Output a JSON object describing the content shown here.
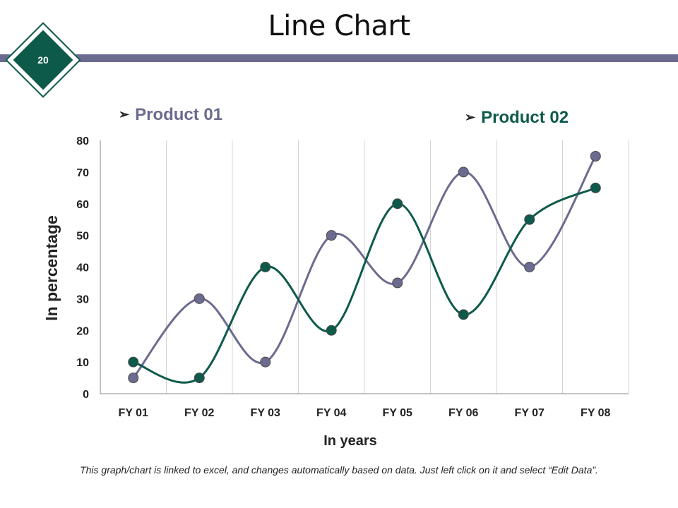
{
  "page": {
    "title": "Line Chart",
    "slide_number": "20",
    "footnote": "This graph/chart is linked to excel, and changes automatically based on data. Just left click on it and select “Edit Data”."
  },
  "colors": {
    "header_bar": "#6b6b8f",
    "product_01": "#6b6b8f",
    "product_02": "#0e5a4a",
    "badge": "#0e5a4a"
  },
  "chart_data": {
    "type": "line",
    "title": "Line Chart",
    "xlabel": "In years",
    "ylabel": "In percentage",
    "categories": [
      "FY 01",
      "FY 02",
      "FY 03",
      "FY 04",
      "FY 05",
      "FY 06",
      "FY 07",
      "FY 08"
    ],
    "ylim": [
      0,
      80
    ],
    "yticks": [
      "0",
      "10",
      "20",
      "30",
      "40",
      "50",
      "60",
      "70",
      "80"
    ],
    "grid": "vertical",
    "smooth": true,
    "legend_position": "top",
    "series": [
      {
        "name": "Product 01",
        "values": [
          5,
          30,
          10,
          50,
          35,
          70,
          40,
          75
        ]
      },
      {
        "name": "Product 02",
        "values": [
          10,
          5,
          40,
          20,
          60,
          25,
          55,
          65
        ]
      }
    ]
  }
}
